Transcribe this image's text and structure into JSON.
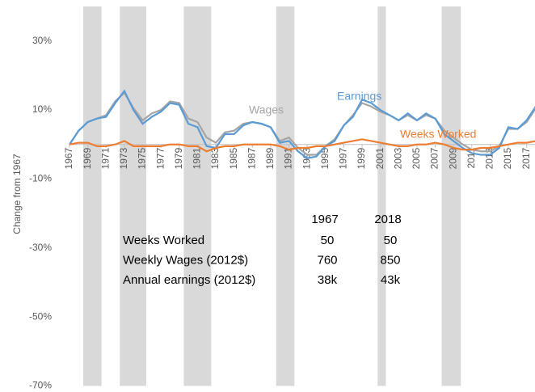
{
  "chart_data": {
    "type": "line",
    "y_label": "Change from 1967",
    "x": [
      1967,
      1968,
      1969,
      1970,
      1971,
      1972,
      1973,
      1974,
      1975,
      1976,
      1977,
      1978,
      1979,
      1980,
      1981,
      1982,
      1983,
      1984,
      1985,
      1986,
      1987,
      1988,
      1989,
      1990,
      1991,
      1992,
      1993,
      1994,
      1995,
      1996,
      1997,
      1998,
      1999,
      2000,
      2001,
      2002,
      2003,
      2004,
      2005,
      2006,
      2007,
      2008,
      2009,
      2010,
      2011,
      2012,
      2013,
      2014,
      2015,
      2016,
      2017,
      2018
    ],
    "xlim": [
      1967,
      2018
    ],
    "xticks": [
      1967,
      1969,
      1971,
      1973,
      1975,
      1977,
      1979,
      1981,
      1983,
      1985,
      1987,
      1989,
      1991,
      1993,
      1995,
      1997,
      1999,
      2001,
      2003,
      2005,
      2007,
      2009,
      2011,
      2013,
      2015,
      2017
    ],
    "ylim": [
      -70,
      40
    ],
    "yticks": [
      {
        "value": -70,
        "label": "-70%"
      },
      {
        "value": -50,
        "label": "-50%"
      },
      {
        "value": -30,
        "label": "-30%"
      },
      {
        "value": -10,
        "label": "-10%"
      },
      {
        "value": 10,
        "label": "10%"
      },
      {
        "value": 30,
        "label": "30%"
      }
    ],
    "grid": false,
    "recession_color": "#d9d9d9",
    "recessions": [
      {
        "start": 1968.5,
        "end": 1970.5
      },
      {
        "start": 1972.5,
        "end": 1975.4
      },
      {
        "start": 1979.5,
        "end": 1982.5
      },
      {
        "start": 1989.6,
        "end": 1991.6
      },
      {
        "start": 2000.7,
        "end": 2001.6
      },
      {
        "start": 2007.7,
        "end": 2009.8
      }
    ],
    "series": [
      {
        "name": "Wages",
        "color": "#a5a5a5",
        "values": [
          0,
          4,
          6.5,
          7.5,
          8.5,
          12.5,
          15,
          10.5,
          7,
          9,
          10,
          12.5,
          12,
          7.5,
          6.5,
          2,
          0.5,
          3.5,
          4,
          6,
          6.5,
          6,
          5,
          1,
          2,
          -1,
          -3,
          -3,
          -0.5,
          1.5,
          5.5,
          8.5,
          12,
          11,
          9.5,
          8.5,
          7,
          8.5,
          7,
          8.5,
          7.5,
          4,
          2,
          0,
          -1.5,
          -2,
          -2,
          -0.5,
          4.5,
          4.5,
          6.5,
          10.5
        ]
      },
      {
        "name": "Earnings",
        "color": "#5b9bd5",
        "values": [
          0,
          4,
          6.5,
          7.5,
          8,
          12,
          15.5,
          10,
          6,
          8,
          9.5,
          12,
          11.5,
          6,
          5,
          -0.5,
          -1,
          3,
          3,
          5.5,
          6.5,
          6,
          5,
          0.5,
          1,
          -2,
          -4,
          -3.5,
          -0.5,
          1,
          5.5,
          8,
          13,
          12,
          10,
          8.5,
          7,
          9,
          7,
          9,
          7.5,
          3,
          1,
          -1,
          -2.5,
          -3,
          -3,
          -1,
          5,
          4.5,
          7,
          11
        ]
      },
      {
        "name": "Weeks Worked",
        "color": "#ed7d31",
        "values": [
          0,
          0.5,
          0.5,
          -0.5,
          -0.5,
          0,
          1,
          -0.5,
          -0.5,
          -0.5,
          -0.5,
          0,
          0,
          -0.5,
          -0.5,
          -2,
          -1,
          -0.5,
          -0.5,
          0,
          0,
          0,
          0,
          -0.5,
          -1.5,
          -1,
          -1,
          -0.5,
          -0.5,
          0,
          0.5,
          1,
          1.5,
          1,
          0.5,
          0,
          -0.5,
          -0.5,
          0,
          0,
          0.5,
          0,
          -1,
          -1.5,
          -1.5,
          -1,
          -1,
          -0.5,
          0,
          0.5,
          0.5,
          1
        ]
      }
    ],
    "table": {
      "headers": [
        "1967",
        "2018"
      ],
      "rows": [
        {
          "label": "Weeks Worked",
          "values": [
            50,
            50
          ]
        },
        {
          "label": "Weekly Wages (2012$)",
          "values": [
            760,
            850
          ]
        },
        {
          "label": "Annual earnings (2012$)",
          "values": [
            "38k",
            "43k"
          ]
        }
      ]
    }
  }
}
